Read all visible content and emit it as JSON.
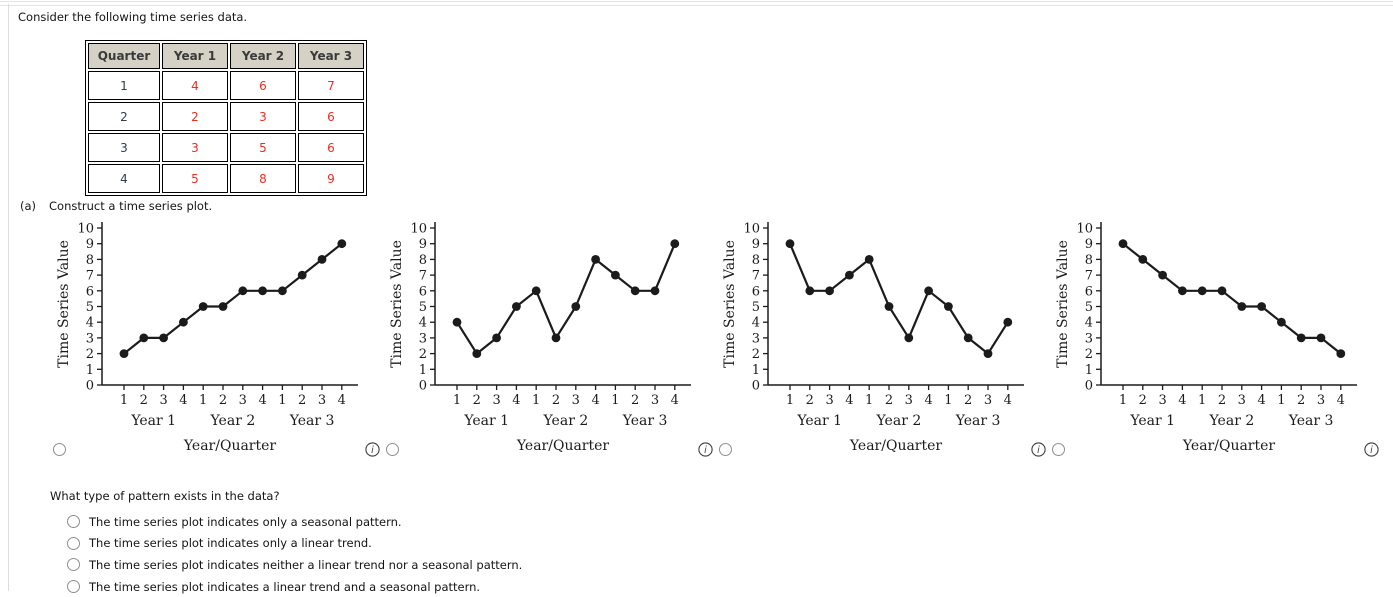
{
  "intro": "Consider the following time series data.",
  "table": {
    "columns": [
      "Quarter",
      "Year 1",
      "Year 2",
      "Year 3"
    ],
    "rows": [
      [
        "1",
        "4",
        "6",
        "7"
      ],
      [
        "2",
        "2",
        "3",
        "6"
      ],
      [
        "3",
        "3",
        "5",
        "6"
      ],
      [
        "4",
        "5",
        "8",
        "9"
      ]
    ]
  },
  "part_a": {
    "label": "(a)",
    "text": "Construct a time series plot."
  },
  "chart_data": [
    {
      "type": "line",
      "title": "",
      "ylabel": "Time Series Value",
      "xlabel": "Year/Quarter",
      "ylim": [
        0,
        10
      ],
      "yticks": [
        0,
        1,
        2,
        3,
        4,
        5,
        6,
        7,
        8,
        9,
        10
      ],
      "quarter_labels": [
        "1",
        "2",
        "3",
        "4",
        "1",
        "2",
        "3",
        "4",
        "1",
        "2",
        "3",
        "4"
      ],
      "year_labels": [
        "Year 1",
        "Year 2",
        "Year 3"
      ],
      "values": [
        2,
        3,
        3,
        4,
        5,
        5,
        6,
        6,
        6,
        7,
        8,
        9
      ]
    },
    {
      "type": "line",
      "title": "",
      "ylabel": "Time Series Value",
      "xlabel": "Year/Quarter",
      "ylim": [
        0,
        10
      ],
      "yticks": [
        0,
        1,
        2,
        3,
        4,
        5,
        6,
        7,
        8,
        9,
        10
      ],
      "quarter_labels": [
        "1",
        "2",
        "3",
        "4",
        "1",
        "2",
        "3",
        "4",
        "1",
        "2",
        "3",
        "4"
      ],
      "year_labels": [
        "Year 1",
        "Year 2",
        "Year 3"
      ],
      "values": [
        4,
        2,
        3,
        5,
        6,
        3,
        5,
        8,
        7,
        6,
        6,
        9
      ]
    },
    {
      "type": "line",
      "title": "",
      "ylabel": "Time Series Value",
      "xlabel": "Year/Quarter",
      "ylim": [
        0,
        10
      ],
      "yticks": [
        0,
        1,
        2,
        3,
        4,
        5,
        6,
        7,
        8,
        9,
        10
      ],
      "quarter_labels": [
        "1",
        "2",
        "3",
        "4",
        "1",
        "2",
        "3",
        "4",
        "1",
        "2",
        "3",
        "4"
      ],
      "year_labels": [
        "Year 1",
        "Year 2",
        "Year 3"
      ],
      "values": [
        9,
        6,
        6,
        7,
        8,
        5,
        3,
        6,
        5,
        3,
        2,
        4
      ]
    },
    {
      "type": "line",
      "title": "",
      "ylabel": "Time Series Value",
      "xlabel": "Year/Quarter",
      "ylim": [
        0,
        10
      ],
      "yticks": [
        0,
        1,
        2,
        3,
        4,
        5,
        6,
        7,
        8,
        9,
        10
      ],
      "quarter_labels": [
        "1",
        "2",
        "3",
        "4",
        "1",
        "2",
        "3",
        "4",
        "1",
        "2",
        "3",
        "4"
      ],
      "year_labels": [
        "Year 1",
        "Year 2",
        "Year 3"
      ],
      "values": [
        9,
        8,
        7,
        6,
        6,
        6,
        5,
        5,
        4,
        3,
        3,
        2
      ]
    }
  ],
  "question": {
    "prompt": "What type of pattern exists in the data?",
    "options": [
      "The time series plot indicates only a seasonal pattern.",
      "The time series plot indicates only a linear trend.",
      "The time series plot indicates neither a linear trend nor a seasonal pattern.",
      "The time series plot indicates a linear trend and a seasonal pattern."
    ]
  },
  "colors": {
    "value_red": "#ee2d1f",
    "quarter_navy": "#2e3d4f",
    "table_header_bg": "#d5d1c4",
    "chart_ink": "#1b1b1b",
    "rule_gray": "#e0e0e0"
  }
}
